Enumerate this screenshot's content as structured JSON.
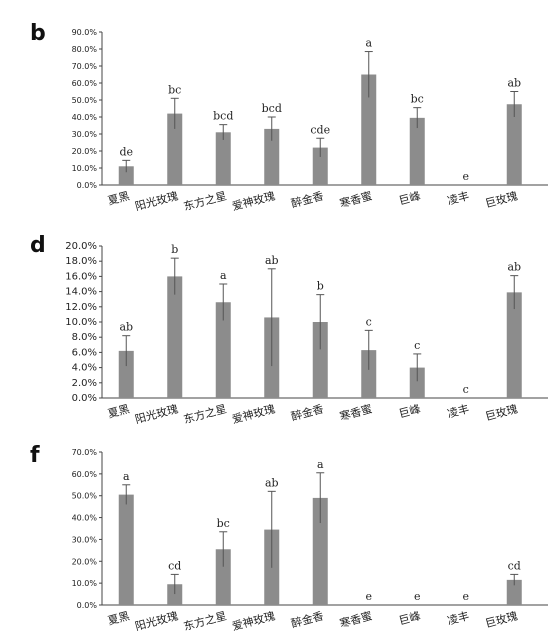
{
  "chart_data": [
    {
      "panel": "b",
      "type": "bar",
      "categories": [
        "夏黑",
        "阳光玫瑰",
        "东方之星",
        "爱神玫瑰",
        "醉金香",
        "寒香蜜",
        "巨峰",
        "凌丰",
        "巨玫瑰"
      ],
      "values": [
        11.0,
        42.0,
        31.0,
        33.0,
        22.0,
        65.0,
        39.5,
        0.0,
        47.5
      ],
      "errors": [
        3.5,
        9.0,
        4.5,
        7.0,
        5.5,
        13.5,
        6.0,
        0.0,
        7.5
      ],
      "significance": [
        "de",
        "bc",
        "bcd",
        "bcd",
        "cde",
        "a",
        "bc",
        "e",
        "ab"
      ],
      "ylim": [
        0,
        90
      ],
      "yticks": [
        "0.0%",
        "10.0%",
        "20.0%",
        "30.0%",
        "40.0%",
        "50.0%",
        "60.0%",
        "70.0%",
        "80.0%",
        "90.0%"
      ],
      "bar_color": "#8c8c8c"
    },
    {
      "panel": "d",
      "type": "bar",
      "categories": [
        "夏黑",
        "阳光玫瑰",
        "东方之星",
        "爱神玫瑰",
        "醉金香",
        "寒香蜜",
        "巨峰",
        "凌丰",
        "巨玫瑰"
      ],
      "values": [
        6.2,
        16.0,
        12.6,
        10.6,
        10.0,
        6.3,
        4.0,
        0.0,
        13.9
      ],
      "errors": [
        2.0,
        2.4,
        2.4,
        6.4,
        3.6,
        2.6,
        1.8,
        0.0,
        2.2
      ],
      "significance": [
        "ab",
        "b",
        "a",
        "ab",
        "b",
        "c",
        "c",
        "c",
        "ab"
      ],
      "ylim": [
        0,
        20
      ],
      "yticks": [
        "0.0%",
        "2.0%",
        "4.0%",
        "6.0%",
        "8.0%",
        "10.0%",
        "12.0%",
        "14.0%",
        "16.0%",
        "18.0%",
        "20.0%"
      ],
      "bar_color": "#8c8c8c"
    },
    {
      "panel": "f",
      "type": "bar",
      "categories": [
        "夏黑",
        "阳光玫瑰",
        "东方之星",
        "爱神玫瑰",
        "醉金香",
        "寒香蜜",
        "巨峰",
        "凌丰",
        "巨玫瑰"
      ],
      "values": [
        50.5,
        9.5,
        25.5,
        34.5,
        49.0,
        0.0,
        0.0,
        0.0,
        11.5
      ],
      "errors": [
        4.5,
        4.5,
        8.0,
        17.5,
        11.5,
        0.0,
        0.0,
        0.0,
        2.5
      ],
      "significance": [
        "a",
        "cd",
        "bc",
        "ab",
        "a",
        "e",
        "e",
        "e",
        "cd"
      ],
      "ylim": [
        0,
        70
      ],
      "yticks": [
        "0.0%",
        "10.0%",
        "20.0%",
        "30.0%",
        "40.0%",
        "50.0%",
        "60.0%",
        "70.0%"
      ],
      "bar_color": "#8c8c8c"
    }
  ]
}
